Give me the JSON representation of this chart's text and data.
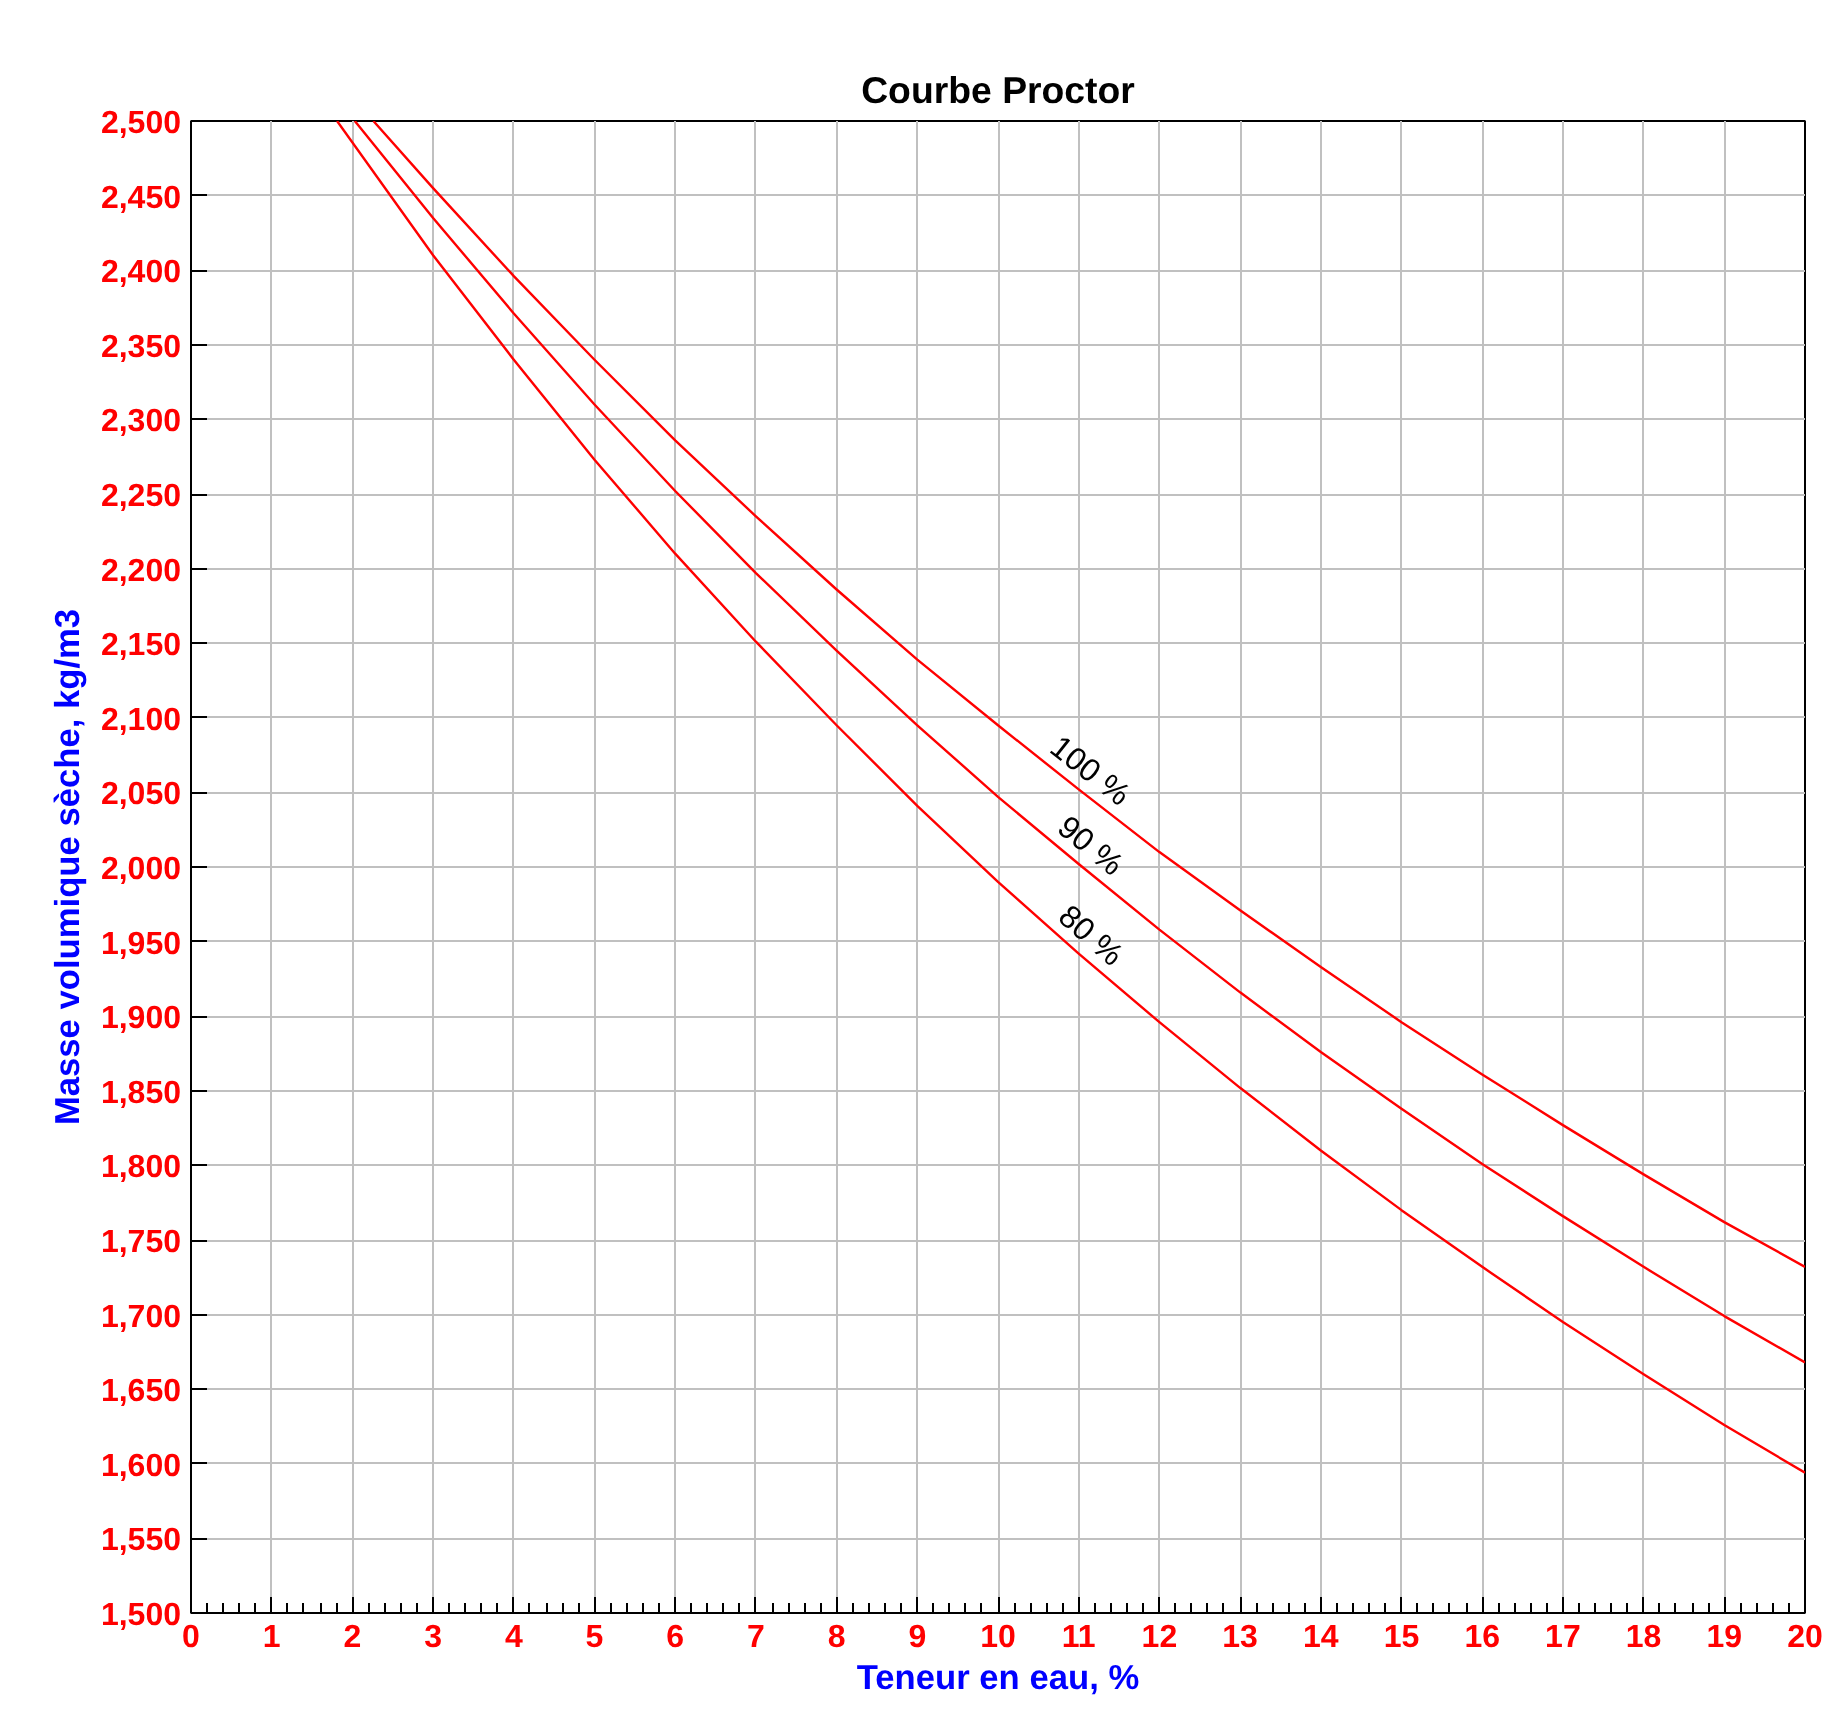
{
  "chart_data": {
    "type": "line",
    "title": "Courbe Proctor",
    "xlabel": "Teneur en eau, %",
    "ylabel": "Masse volumique sèche, kg/m3",
    "xlim": [
      0,
      20
    ],
    "ylim": [
      1500,
      2500
    ],
    "xticks": [
      0,
      1,
      2,
      3,
      4,
      5,
      6,
      7,
      8,
      9,
      10,
      11,
      12,
      13,
      14,
      15,
      16,
      17,
      18,
      19,
      20
    ],
    "yticks": [
      {
        "value": 1500,
        "label": "1,500"
      },
      {
        "value": 1550,
        "label": "1,550"
      },
      {
        "value": 1600,
        "label": "1,600"
      },
      {
        "value": 1650,
        "label": "1,650"
      },
      {
        "value": 1700,
        "label": "1,700"
      },
      {
        "value": 1750,
        "label": "1,750"
      },
      {
        "value": 1800,
        "label": "1,800"
      },
      {
        "value": 1850,
        "label": "1,850"
      },
      {
        "value": 1900,
        "label": "1,900"
      },
      {
        "value": 1950,
        "label": "1,950"
      },
      {
        "value": 2000,
        "label": "2,000"
      },
      {
        "value": 2050,
        "label": "2,050"
      },
      {
        "value": 2100,
        "label": "2,100"
      },
      {
        "value": 2150,
        "label": "2,150"
      },
      {
        "value": 2200,
        "label": "2,200"
      },
      {
        "value": 2250,
        "label": "2,250"
      },
      {
        "value": 2300,
        "label": "2,300"
      },
      {
        "value": 2350,
        "label": "2,350"
      },
      {
        "value": 2400,
        "label": "2,400"
      },
      {
        "value": 2450,
        "label": "2,450"
      },
      {
        "value": 2500,
        "label": "2,500"
      }
    ],
    "grid": true,
    "marker": "none",
    "line_style": "solid",
    "series": [
      {
        "name": "100 %",
        "color": "#ff0000",
        "x": [
          2.26,
          3,
          4,
          5,
          6,
          7,
          8,
          9,
          10,
          11,
          12,
          13,
          14,
          15,
          16,
          17,
          18,
          19,
          20
        ],
        "values": [
          2500,
          2455,
          2396,
          2340,
          2286,
          2235,
          2186,
          2139,
          2095,
          2052,
          2010,
          1971,
          1933,
          1896,
          1861,
          1827,
          1794,
          1762,
          1732
        ]
      },
      {
        "name": "90 %",
        "color": "#ff0000",
        "x": [
          2.03,
          3,
          4,
          5,
          6,
          7,
          8,
          9,
          10,
          11,
          12,
          13,
          14,
          15,
          16,
          17,
          18,
          19,
          20
        ],
        "values": [
          2500,
          2435,
          2371,
          2310,
          2252,
          2197,
          2145,
          2095,
          2047,
          2002,
          1958,
          1916,
          1876,
          1838,
          1801,
          1766,
          1732,
          1699,
          1668
        ]
      },
      {
        "name": "80 %",
        "color": "#ff0000",
        "x": [
          1.81,
          3,
          4,
          5,
          6,
          7,
          8,
          9,
          10,
          11,
          12,
          13,
          14,
          15,
          16,
          17,
          18,
          19,
          20
        ],
        "values": [
          2500,
          2410,
          2340,
          2273,
          2210,
          2151,
          2095,
          2041,
          1990,
          1942,
          1896,
          1852,
          1810,
          1770,
          1732,
          1695,
          1660,
          1626,
          1594
        ]
      }
    ]
  }
}
